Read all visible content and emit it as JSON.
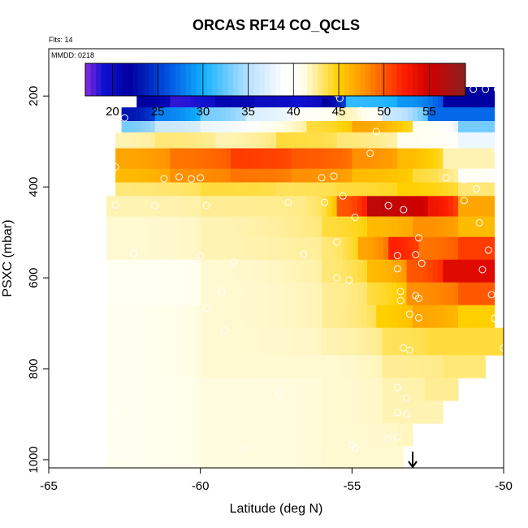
{
  "chart_data": {
    "type": "heatmap",
    "title": "ORCAS RF14 CO_QCLS",
    "flight_note": "Flts: 14",
    "date_note": "MMDD: 0218",
    "xlabel": "Latitude (deg N)",
    "ylabel": "PSXC (mbar)",
    "xlim": [
      -65,
      -50
    ],
    "ylim": [
      1020,
      100
    ],
    "y_reversed": true,
    "x_ticks": [
      -65,
      -60,
      -55,
      -50
    ],
    "x_tick_labels": [
      "-65",
      "-60",
      "-55",
      "-50"
    ],
    "y_ticks": [
      200,
      400,
      600,
      800,
      1000
    ],
    "y_tick_labels": [
      "200",
      "400",
      "600",
      "800",
      "1000"
    ],
    "colorbar": {
      "range": [
        17,
        59
      ],
      "ticks": [
        20,
        25,
        30,
        35,
        40,
        45,
        50,
        55
      ],
      "tick_labels": [
        "20",
        "25",
        "30",
        "35",
        "40",
        "45",
        "50",
        "55"
      ],
      "stops": [
        {
          "v": 17,
          "c": "#8a2be2"
        },
        {
          "v": 19,
          "c": "#1010d0"
        },
        {
          "v": 22,
          "c": "#0000a0"
        },
        {
          "v": 26,
          "c": "#0050e0"
        },
        {
          "v": 30,
          "c": "#10b0ff"
        },
        {
          "v": 35,
          "c": "#b8e0ff"
        },
        {
          "v": 39,
          "c": "#ffffff"
        },
        {
          "v": 41,
          "c": "#fffff0"
        },
        {
          "v": 45,
          "c": "#ffd000"
        },
        {
          "v": 48,
          "c": "#ff9000"
        },
        {
          "v": 52,
          "c": "#ff2000"
        },
        {
          "v": 55,
          "c": "#d00000"
        },
        {
          "v": 59,
          "c": "#8b2020"
        }
      ]
    },
    "layers": [
      {
        "p_top": 180,
        "p_bot": 225,
        "segments": [
          {
            "x0": -62.1,
            "x1": -61.0,
            "v": 22
          },
          {
            "x0": -61.0,
            "x1": -59.5,
            "v": 18.5
          },
          {
            "x0": -59.5,
            "x1": -58.2,
            "v": 21
          },
          {
            "x0": -58.2,
            "x1": -57.0,
            "v": 20
          },
          {
            "x0": -57.0,
            "x1": -56.0,
            "v": 19
          },
          {
            "x0": -56.0,
            "x1": -55.2,
            "v": 22
          },
          {
            "x0": -55.2,
            "x1": -53.5,
            "v": 31
          },
          {
            "x0": -53.5,
            "x1": -52.0,
            "v": 29
          },
          {
            "x0": -52.0,
            "x1": -50.3,
            "v": 22
          }
        ]
      },
      {
        "p_top": 225,
        "p_bot": 255,
        "segments": [
          {
            "x0": -62.6,
            "x1": -61.5,
            "v": 23
          },
          {
            "x0": -61.5,
            "x1": -60.0,
            "v": 28
          },
          {
            "x0": -60.0,
            "x1": -58.5,
            "v": 33
          },
          {
            "x0": -58.5,
            "x1": -57.0,
            "v": 37
          },
          {
            "x0": -57.0,
            "x1": -55.5,
            "v": 40
          },
          {
            "x0": -55.5,
            "x1": -54.0,
            "v": 42
          },
          {
            "x0": -54.0,
            "x1": -52.5,
            "v": 36
          },
          {
            "x0": -52.5,
            "x1": -50.3,
            "v": 27
          }
        ]
      },
      {
        "p_top": 255,
        "p_bot": 280,
        "segments": [
          {
            "x0": -62.6,
            "x1": -61.5,
            "v": 33
          },
          {
            "x0": -61.5,
            "x1": -60.0,
            "v": 36
          },
          {
            "x0": -60.0,
            "x1": -58.0,
            "v": 38
          },
          {
            "x0": -58.0,
            "x1": -56.5,
            "v": 41
          },
          {
            "x0": -56.5,
            "x1": -55.0,
            "v": 44
          },
          {
            "x0": -55.0,
            "x1": -53.0,
            "v": 47
          },
          {
            "x0": -53.0,
            "x1": -51.5,
            "v": 41
          },
          {
            "x0": -51.5,
            "x1": -50.3,
            "v": 33
          }
        ]
      },
      {
        "p_top": 280,
        "p_bot": 315,
        "segments": [
          {
            "x0": -62.8,
            "x1": -61.5,
            "v": 42
          },
          {
            "x0": -61.5,
            "x1": -59.5,
            "v": 43
          },
          {
            "x0": -59.5,
            "x1": -57.5,
            "v": 42
          },
          {
            "x0": -57.5,
            "x1": -55.5,
            "v": 44
          },
          {
            "x0": -55.5,
            "x1": -53.5,
            "v": 43
          },
          {
            "x0": -53.5,
            "x1": -51.5,
            "v": 41
          },
          {
            "x0": -51.5,
            "x1": -50.3,
            "v": 38
          }
        ]
      },
      {
        "p_top": 315,
        "p_bot": 360,
        "segments": [
          {
            "x0": -62.8,
            "x1": -61.0,
            "v": 47
          },
          {
            "x0": -61.0,
            "x1": -59.0,
            "v": 49
          },
          {
            "x0": -59.0,
            "x1": -57.0,
            "v": 51
          },
          {
            "x0": -57.0,
            "x1": -55.0,
            "v": 50
          },
          {
            "x0": -55.0,
            "x1": -53.5,
            "v": 48
          },
          {
            "x0": -53.5,
            "x1": -52.0,
            "v": 46
          },
          {
            "x0": -52.0,
            "x1": -50.3,
            "v": 42
          }
        ]
      },
      {
        "p_top": 360,
        "p_bot": 390,
        "segments": [
          {
            "x0": -62.8,
            "x1": -61.0,
            "v": 46
          },
          {
            "x0": -61.0,
            "x1": -59.0,
            "v": 48
          },
          {
            "x0": -59.0,
            "x1": -57.0,
            "v": 49
          },
          {
            "x0": -57.0,
            "x1": -55.0,
            "v": 48
          },
          {
            "x0": -55.0,
            "x1": -53.0,
            "v": 46
          },
          {
            "x0": -53.0,
            "x1": -51.5,
            "v": 44
          },
          {
            "x0": -51.5,
            "x1": -50.3,
            "v": 40
          }
        ]
      },
      {
        "p_top": 390,
        "p_bot": 420,
        "segments": [
          {
            "x0": -62.8,
            "x1": -60.0,
            "v": 43
          },
          {
            "x0": -60.0,
            "x1": -57.5,
            "v": 44
          },
          {
            "x0": -57.5,
            "x1": -55.5,
            "v": 43.5
          },
          {
            "x0": -55.5,
            "x1": -53.5,
            "v": 44
          },
          {
            "x0": -53.5,
            "x1": -51.5,
            "v": 45
          },
          {
            "x0": -51.5,
            "x1": -50.3,
            "v": 43
          }
        ]
      },
      {
        "p_top": 420,
        "p_bot": 465,
        "segments": [
          {
            "x0": -63.1,
            "x1": -60.0,
            "v": 42
          },
          {
            "x0": -60.0,
            "x1": -56.5,
            "v": 42.5
          },
          {
            "x0": -56.5,
            "x1": -55.5,
            "v": 43
          },
          {
            "x0": -55.5,
            "x1": -54.5,
            "v": 50
          },
          {
            "x0": -54.5,
            "x1": -52.5,
            "v": 56
          },
          {
            "x0": -52.5,
            "x1": -51.5,
            "v": 53
          },
          {
            "x0": -51.5,
            "x1": -50.3,
            "v": 47
          }
        ]
      },
      {
        "p_top": 465,
        "p_bot": 510,
        "segments": [
          {
            "x0": -63.1,
            "x1": -60.0,
            "v": 41.5
          },
          {
            "x0": -60.0,
            "x1": -56.0,
            "v": 42
          },
          {
            "x0": -56.0,
            "x1": -54.5,
            "v": 44
          },
          {
            "x0": -54.5,
            "x1": -53.0,
            "v": 46
          },
          {
            "x0": -53.0,
            "x1": -51.5,
            "v": 48
          },
          {
            "x0": -51.5,
            "x1": -50.3,
            "v": 46
          }
        ]
      },
      {
        "p_top": 510,
        "p_bot": 560,
        "segments": [
          {
            "x0": -63.1,
            "x1": -60.0,
            "v": 41.5
          },
          {
            "x0": -60.0,
            "x1": -56.0,
            "v": 42
          },
          {
            "x0": -56.0,
            "x1": -54.8,
            "v": 43
          },
          {
            "x0": -54.8,
            "x1": -53.8,
            "v": 47
          },
          {
            "x0": -53.8,
            "x1": -52.8,
            "v": 52
          },
          {
            "x0": -52.8,
            "x1": -51.5,
            "v": 49
          },
          {
            "x0": -51.5,
            "x1": -50.3,
            "v": 51
          }
        ]
      },
      {
        "p_top": 560,
        "p_bot": 610,
        "segments": [
          {
            "x0": -63.1,
            "x1": -60.0,
            "v": 40.5
          },
          {
            "x0": -60.0,
            "x1": -56.0,
            "v": 41.5
          },
          {
            "x0": -56.0,
            "x1": -54.5,
            "v": 43
          },
          {
            "x0": -54.5,
            "x1": -53.2,
            "v": 46
          },
          {
            "x0": -53.2,
            "x1": -52.0,
            "v": 50
          },
          {
            "x0": -52.0,
            "x1": -50.3,
            "v": 54
          }
        ]
      },
      {
        "p_top": 610,
        "p_bot": 660,
        "segments": [
          {
            "x0": -63.1,
            "x1": -60.0,
            "v": 40.5
          },
          {
            "x0": -60.0,
            "x1": -56.0,
            "v": 41.5
          },
          {
            "x0": -56.0,
            "x1": -54.5,
            "v": 42.5
          },
          {
            "x0": -54.5,
            "x1": -53.2,
            "v": 44
          },
          {
            "x0": -53.2,
            "x1": -51.5,
            "v": 48
          },
          {
            "x0": -51.5,
            "x1": -50.3,
            "v": 50
          }
        ]
      },
      {
        "p_top": 660,
        "p_bot": 710,
        "segments": [
          {
            "x0": -63.1,
            "x1": -60.0,
            "v": 41
          },
          {
            "x0": -60.0,
            "x1": -56.0,
            "v": 41.5
          },
          {
            "x0": -56.0,
            "x1": -54.2,
            "v": 42.5
          },
          {
            "x0": -54.2,
            "x1": -53.0,
            "v": 45
          },
          {
            "x0": -53.0,
            "x1": -51.5,
            "v": 47
          },
          {
            "x0": -51.5,
            "x1": -50.3,
            "v": 45
          }
        ]
      },
      {
        "p_top": 710,
        "p_bot": 770,
        "segments": [
          {
            "x0": -63.1,
            "x1": -60.0,
            "v": 41
          },
          {
            "x0": -60.0,
            "x1": -56.0,
            "v": 41.5
          },
          {
            "x0": -56.0,
            "x1": -54.0,
            "v": 42
          },
          {
            "x0": -54.0,
            "x1": -52.5,
            "v": 43.5
          },
          {
            "x0": -52.5,
            "x1": -50.0,
            "v": 44
          }
        ]
      },
      {
        "p_top": 770,
        "p_bot": 820,
        "segments": [
          {
            "x0": -63.1,
            "x1": -60.0,
            "v": 41
          },
          {
            "x0": -60.0,
            "x1": -56.0,
            "v": 41.5
          },
          {
            "x0": -56.0,
            "x1": -54.0,
            "v": 41.5
          },
          {
            "x0": -54.0,
            "x1": -52.0,
            "v": 42.5
          },
          {
            "x0": -52.0,
            "x1": -50.6,
            "v": 43
          }
        ]
      },
      {
        "p_top": 820,
        "p_bot": 870,
        "segments": [
          {
            "x0": -63.1,
            "x1": -60.0,
            "v": 41
          },
          {
            "x0": -60.0,
            "x1": -56.0,
            "v": 41.3
          },
          {
            "x0": -56.0,
            "x1": -54.0,
            "v": 41.5
          },
          {
            "x0": -54.0,
            "x1": -52.6,
            "v": 42
          },
          {
            "x0": -52.6,
            "x1": -51.5,
            "v": 42.5
          }
        ]
      },
      {
        "p_top": 870,
        "p_bot": 920,
        "segments": [
          {
            "x0": -63.1,
            "x1": -60.0,
            "v": 41
          },
          {
            "x0": -60.0,
            "x1": -56.0,
            "v": 41.3
          },
          {
            "x0": -56.0,
            "x1": -54.0,
            "v": 41.5
          },
          {
            "x0": -54.0,
            "x1": -52.0,
            "v": 42
          }
        ]
      },
      {
        "p_top": 920,
        "p_bot": 970,
        "segments": [
          {
            "x0": -63.1,
            "x1": -60.0,
            "v": 41
          },
          {
            "x0": -60.0,
            "x1": -56.0,
            "v": 41.3
          },
          {
            "x0": -56.0,
            "x1": -53.5,
            "v": 41.5
          },
          {
            "x0": -53.5,
            "x1": -53.0,
            "v": 41.8
          }
        ]
      },
      {
        "p_top": 970,
        "p_bot": 1020,
        "segments": [
          {
            "x0": -63.1,
            "x1": -60.0,
            "v": 41
          },
          {
            "x0": -60.0,
            "x1": -56.0,
            "v": 41.3
          },
          {
            "x0": -56.0,
            "x1": -53.3,
            "v": 41.5
          }
        ]
      }
    ],
    "points": [
      [
        -62.0,
        185
      ],
      [
        -61.6,
        185
      ],
      [
        -61.2,
        185
      ],
      [
        -60.7,
        185
      ],
      [
        -60.3,
        185
      ],
      [
        -59.6,
        185
      ],
      [
        -59.0,
        185
      ],
      [
        -58.4,
        185
      ],
      [
        -57.9,
        185
      ],
      [
        -57.5,
        185
      ],
      [
        -57.0,
        185
      ],
      [
        -56.6,
        185
      ],
      [
        -56.2,
        185
      ],
      [
        -55.8,
        185
      ],
      [
        -55.5,
        195
      ],
      [
        -55.4,
        205
      ],
      [
        -52.2,
        190
      ],
      [
        -51.8,
        185
      ],
      [
        -51.4,
        185
      ],
      [
        -51.0,
        185
      ],
      [
        -50.6,
        185
      ],
      [
        -50.2,
        185
      ],
      [
        -62.5,
        248
      ],
      [
        -54.7,
        232
      ],
      [
        -54.2,
        278
      ],
      [
        -54.4,
        326
      ],
      [
        -50.2,
        320
      ],
      [
        -62.8,
        356
      ],
      [
        -61.2,
        382
      ],
      [
        -60.7,
        378
      ],
      [
        -60.3,
        382
      ],
      [
        -60.0,
        380
      ],
      [
        -56.0,
        380
      ],
      [
        -55.6,
        376
      ],
      [
        -51.9,
        380
      ],
      [
        -51.3,
        384
      ],
      [
        -50.9,
        404
      ],
      [
        -62.8,
        440
      ],
      [
        -61.5,
        441
      ],
      [
        -59.8,
        441
      ],
      [
        -57.1,
        434
      ],
      [
        -55.9,
        434
      ],
      [
        -55.3,
        420
      ],
      [
        -53.8,
        441
      ],
      [
        -53.3,
        450
      ],
      [
        -51.3,
        430
      ],
      [
        -50.8,
        479
      ],
      [
        -54.9,
        467
      ],
      [
        -62.2,
        546
      ],
      [
        -60.0,
        551
      ],
      [
        -58.9,
        566
      ],
      [
        -56.6,
        548
      ],
      [
        -55.5,
        521
      ],
      [
        -52.8,
        512
      ],
      [
        -53.5,
        551
      ],
      [
        -52.9,
        549
      ],
      [
        -52.7,
        568
      ],
      [
        -50.5,
        539
      ],
      [
        -61.8,
        629
      ],
      [
        -59.3,
        629
      ],
      [
        -55.5,
        600
      ],
      [
        -55.1,
        605
      ],
      [
        -53.5,
        580
      ],
      [
        -53.4,
        630
      ],
      [
        -53.4,
        650
      ],
      [
        -52.9,
        639
      ],
      [
        -52.8,
        645
      ],
      [
        -50.7,
        582
      ],
      [
        -50.4,
        637
      ],
      [
        -50.3,
        689
      ],
      [
        -53.1,
        680
      ],
      [
        -52.8,
        688
      ],
      [
        -59.8,
        667
      ],
      [
        -59.2,
        716
      ],
      [
        -53.3,
        754
      ],
      [
        -53.1,
        759
      ],
      [
        -50.0,
        754
      ],
      [
        -57.4,
        856
      ],
      [
        -53.5,
        841
      ],
      [
        -53.2,
        865
      ],
      [
        -53.5,
        896
      ],
      [
        -53.2,
        900
      ],
      [
        -58.5,
        974
      ],
      [
        -55.0,
        968
      ],
      [
        -54.9,
        975
      ],
      [
        -53.8,
        954
      ],
      [
        -53.5,
        950
      ],
      [
        -62.9,
        989
      ],
      [
        -62.6,
        989
      ],
      [
        -62.8,
        895
      ]
    ],
    "arrow_marker_x": -53.0
  }
}
